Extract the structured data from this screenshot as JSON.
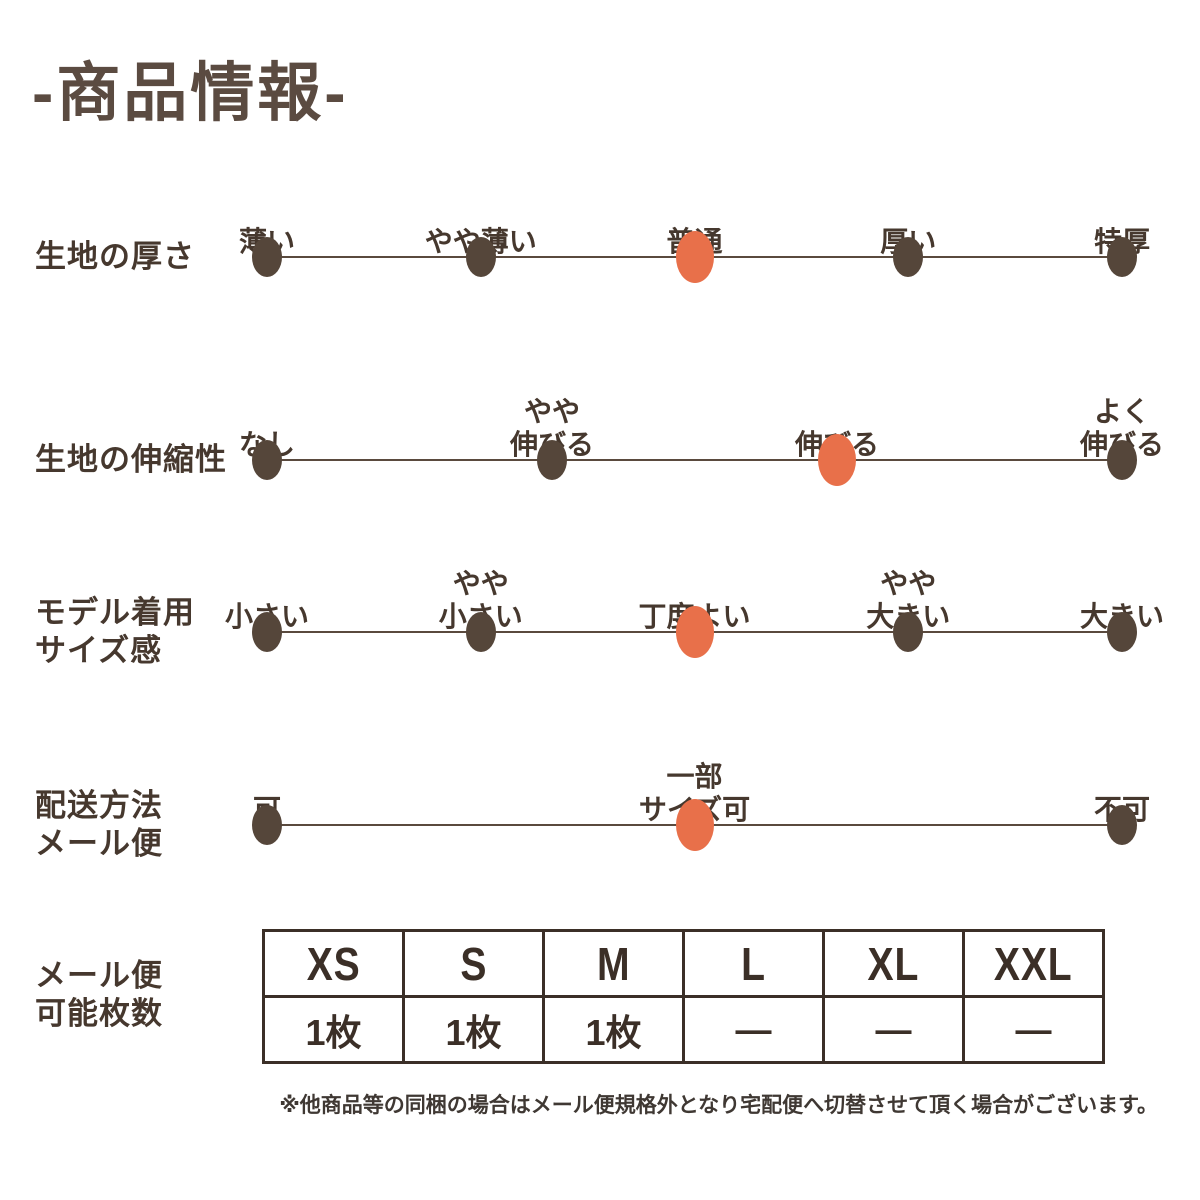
{
  "title": "-商品情報-",
  "colors": {
    "title": "#5B4B41",
    "text": "#46382E",
    "line": "#5A4A3E",
    "dot": "#55463A",
    "dot_selected": "#E8704A",
    "table_border": "#3B2F27",
    "table_text": "#3B2F27",
    "footnote": "#3F3833"
  },
  "chart_data": [
    {
      "type": "rating-scale",
      "label": "生地の厚さ",
      "label_lines": [
        "生地の厚さ"
      ],
      "options": [
        "薄い",
        "やや薄い",
        "普通",
        "厚い",
        "特厚"
      ],
      "option_lines": [
        [
          "薄い"
        ],
        [
          "やや薄い"
        ],
        [
          "普通"
        ],
        [
          "厚い"
        ],
        [
          "特厚"
        ]
      ],
      "selected": "普通",
      "selected_index": 2
    },
    {
      "type": "rating-scale",
      "label": "生地の伸縮性",
      "label_lines": [
        "生地の伸縮性"
      ],
      "options": [
        "なし",
        "やや伸びる",
        "伸びる",
        "よく伸びる"
      ],
      "option_lines": [
        [
          "なし"
        ],
        [
          "やや",
          "伸びる"
        ],
        [
          "伸びる"
        ],
        [
          "よく",
          "伸びる"
        ]
      ],
      "selected": "伸びる",
      "selected_index": 2
    },
    {
      "type": "rating-scale",
      "label": "モデル着用サイズ感",
      "label_lines": [
        "モデル着用",
        "サイズ感"
      ],
      "options": [
        "小さい",
        "やや小さい",
        "丁度よい",
        "やや大きい",
        "大きい"
      ],
      "option_lines": [
        [
          "小さい"
        ],
        [
          "やや",
          "小さい"
        ],
        [
          "丁度よい"
        ],
        [
          "やや",
          "大きい"
        ],
        [
          "大きい"
        ]
      ],
      "selected": "丁度よい",
      "selected_index": 2
    },
    {
      "type": "rating-scale",
      "label": "配送方法メール便",
      "label_lines": [
        "配送方法",
        "メール便"
      ],
      "options": [
        "可",
        "一部サイズ可",
        "不可"
      ],
      "option_lines": [
        [
          "可"
        ],
        [
          "一部",
          "サイズ可"
        ],
        [
          "不可"
        ]
      ],
      "selected": "一部サイズ可",
      "selected_index": 1
    }
  ],
  "capacity_table": {
    "label": "メール便可能枚数",
    "label_lines": [
      "メール便",
      "可能枚数"
    ],
    "columns": [
      "XS",
      "S",
      "M",
      "L",
      "XL",
      "XXL"
    ],
    "values": [
      "1枚",
      "1枚",
      "1枚",
      "—",
      "—",
      "—"
    ]
  },
  "footnote": "※他商品等の同梱の場合はメール便規格外となり宅配便へ切替させて頂く場合がございます。"
}
